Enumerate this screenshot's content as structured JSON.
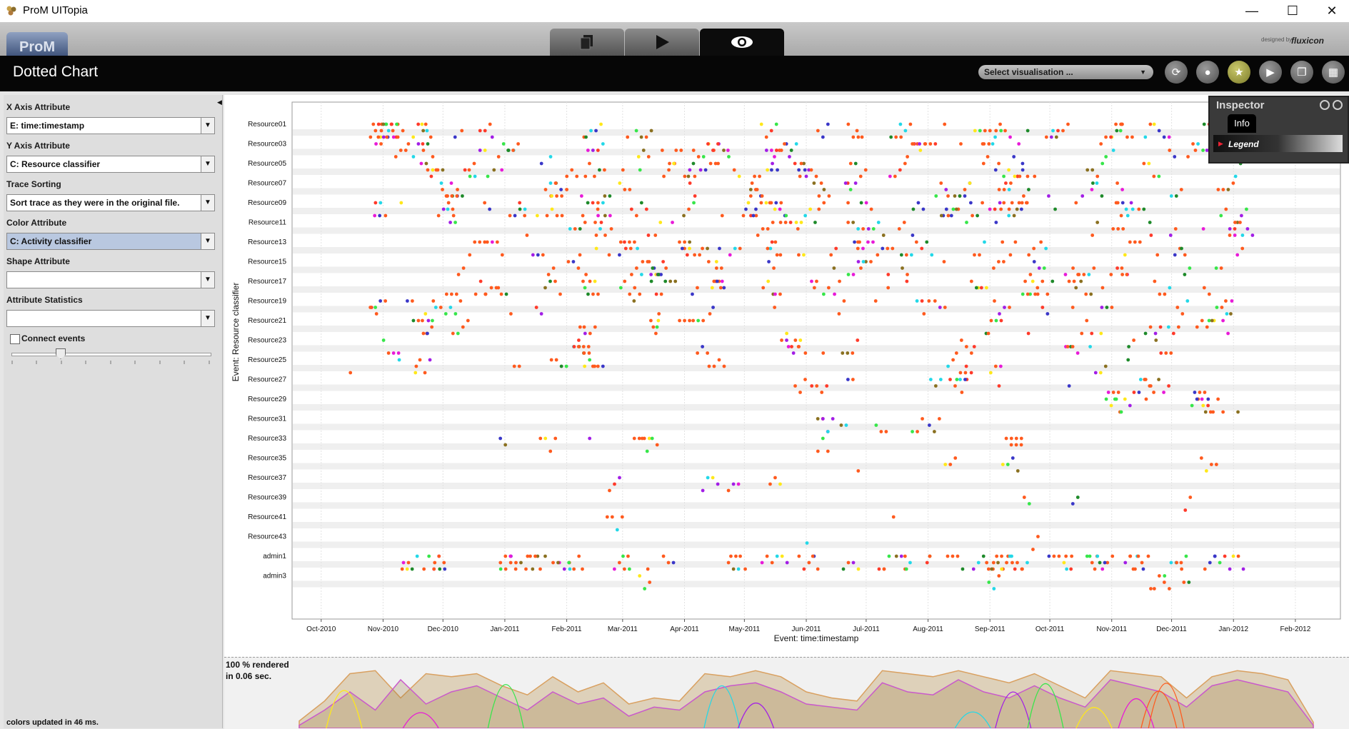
{
  "window": {
    "title": "ProM UITopia",
    "minimize": "—",
    "maximize": "☐",
    "close": "✕"
  },
  "topbar": {
    "logo": "ProM",
    "tabs": [
      {
        "icon": "workspace-icon",
        "glyph": "❐"
      },
      {
        "icon": "play-icon",
        "glyph": "▶"
      },
      {
        "icon": "view-icon",
        "glyph": "◉"
      }
    ],
    "designed_by": "designed by",
    "brand": "fluxicon"
  },
  "header": {
    "title": "Dotted Chart",
    "select_visualisation": "Select visualisation ...",
    "buttons": [
      {
        "name": "refresh-icon",
        "glyph": "⟳"
      },
      {
        "name": "drop-icon",
        "glyph": "●"
      },
      {
        "name": "star-icon",
        "glyph": "★"
      },
      {
        "name": "play-icon",
        "glyph": "▶"
      },
      {
        "name": "copy-icon",
        "glyph": "❐"
      },
      {
        "name": "grid-icon",
        "glyph": "▦"
      }
    ]
  },
  "controls": {
    "x_axis_label": "X Axis Attribute",
    "x_axis_value": "E: time:timestamp",
    "y_axis_label": "Y Axis Attribute",
    "y_axis_value": "C: Resource classifier",
    "trace_sorting_label": "Trace Sorting",
    "trace_sorting_value": "Sort trace as they were in the original file.",
    "color_label": "Color Attribute",
    "color_value": "C: Activity classifier",
    "shape_label": "Shape Attribute",
    "shape_value": "",
    "stats_label": "Attribute Statistics",
    "stats_value": "",
    "connect_events": "Connect events",
    "status": "colors updated in 46 ms."
  },
  "overview": {
    "rendered_line1": "100 % rendered",
    "rendered_line2": "in 0.06 sec."
  },
  "inspector": {
    "title": "Inspector",
    "tab": "Info",
    "legend": "Legend"
  },
  "chart_data": {
    "type": "scatter",
    "title": "",
    "xlabel": "Event: time:timestamp",
    "ylabel": "Event: Resource classifier",
    "x_ticks": [
      "Oct-2010",
      "Nov-2010",
      "Dec-2010",
      "Jan-2011",
      "Feb-2011",
      "Mar-2011",
      "Apr-2011",
      "May-2011",
      "Jun-2011",
      "Jul-2011",
      "Aug-2011",
      "Sep-2011",
      "Oct-2011",
      "Nov-2011",
      "Dec-2011",
      "Jan-2012",
      "Feb-2012"
    ],
    "y_categories": [
      "Resource01",
      "Resource03",
      "Resource05",
      "Resource07",
      "Resource09",
      "Resource11",
      "Resource13",
      "Resource15",
      "Resource17",
      "Resource19",
      "Resource21",
      "Resource23",
      "Resource25",
      "Resource27",
      "Resource29",
      "Resource31",
      "Resource33",
      "Resource35",
      "Resource37",
      "Resource39",
      "Resource41",
      "Resource43",
      "admin1",
      "admin3"
    ],
    "xlim": [
      "2010-09-20",
      "2012-02-20"
    ],
    "grid": true,
    "palette": [
      "#ff5a1e",
      "#ff3a2a",
      "#ffe81a",
      "#e81ad8",
      "#a21ee6",
      "#37e64a",
      "#1e8a2a",
      "#3a37c8",
      "#23d8e8",
      "#8a7020"
    ],
    "activity_density": [
      [
        0.12,
        0.45,
        0.9,
        0.95,
        0.5,
        0.9,
        0.85,
        0.9,
        0.7,
        0.55,
        0.85,
        0.6,
        0.75,
        0.4,
        0.5,
        0.45,
        0.9,
        0.85,
        0.95,
        0.85,
        0.6,
        0.5,
        0.45,
        0.95,
        0.9,
        0.85,
        0.95,
        0.85,
        0.75,
        0.9,
        0.7,
        0.5,
        0.95,
        0.9,
        0.85,
        0.5,
        0.85,
        0.95,
        0.9,
        0.8,
        0.1
      ],
      [
        0.05,
        0.3,
        0.6,
        0.3,
        0.8,
        0.4,
        0.6,
        0.7,
        0.5,
        0.3,
        0.6,
        0.4,
        0.5,
        0.2,
        0.35,
        0.3,
        0.6,
        0.7,
        0.75,
        0.6,
        0.4,
        0.35,
        0.3,
        0.75,
        0.6,
        0.55,
        0.8,
        0.6,
        0.5,
        0.7,
        0.5,
        0.35,
        0.8,
        0.7,
        0.6,
        0.35,
        0.7,
        0.8,
        0.7,
        0.6,
        0.05
      ]
    ]
  }
}
